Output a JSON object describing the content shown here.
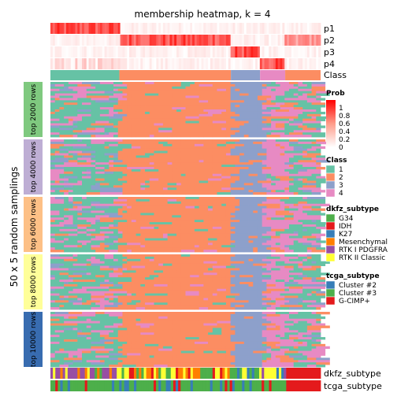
{
  "chart_data": {
    "type": "heatmap",
    "title": "membership heatmap, k = 4",
    "ylabel": "50 x 5 random samplings",
    "prob_rows": [
      "p1",
      "p2",
      "p3",
      "p4"
    ],
    "class_row_label": "Class",
    "annotation_rows": [
      "dkfz_subtype",
      "tcga_subtype"
    ],
    "row_groups": [
      "top 2000 rows",
      "top 4000 rows",
      "top 6000 rows",
      "top 8000 rows",
      "top 10000 rows"
    ],
    "row_group_colors": [
      "#7fc97f",
      "#beaed4",
      "#fdc086",
      "#ffff99",
      "#386cb0"
    ],
    "class_segments": [
      {
        "class": "1",
        "fraction": 0.255
      },
      {
        "class": "2",
        "fraction": 0.413
      },
      {
        "class": "3",
        "fraction": 0.108
      },
      {
        "class": "4",
        "fraction": 0.093
      },
      {
        "class": "2",
        "fraction": 0.131
      }
    ],
    "legends": {
      "prob": {
        "title": "Prob",
        "ticks": [
          "1",
          "0.8",
          "0.6",
          "0.4",
          "0.2",
          "0"
        ]
      },
      "class": {
        "title": "Class",
        "items": [
          {
            "label": "1",
            "color": "#66c2a5"
          },
          {
            "label": "2",
            "color": "#fc8d62"
          },
          {
            "label": "3",
            "color": "#8da0cb"
          },
          {
            "label": "4",
            "color": "#e78ac3"
          }
        ]
      },
      "dkfz_subtype": {
        "title": "dkfz_subtype",
        "items": [
          {
            "label": "G34",
            "color": "#4daf4a"
          },
          {
            "label": "IDH",
            "color": "#e41a1c"
          },
          {
            "label": "K27",
            "color": "#377eb8"
          },
          {
            "label": "Mesenchymal",
            "color": "#ff7f00"
          },
          {
            "label": "RTK I PDGFRA",
            "color": "#984ea3"
          },
          {
            "label": "RTK II Classic",
            "color": "#ffff33"
          }
        ]
      },
      "tcga_subtype": {
        "title": "tcga_subtype",
        "items": [
          {
            "label": "Cluster #2",
            "color": "#377eb8"
          },
          {
            "label": "Cluster #3",
            "color": "#4daf4a"
          },
          {
            "label": "G-CIMP+",
            "color": "#e41a1c"
          }
        ]
      }
    }
  }
}
